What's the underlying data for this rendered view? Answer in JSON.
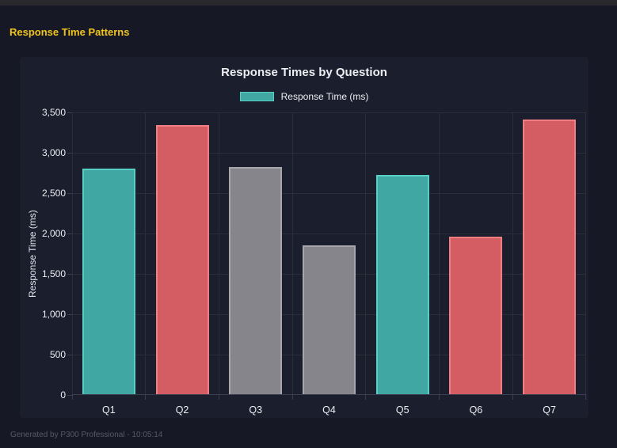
{
  "page": {
    "header_title": "Response Time Patterns",
    "footer": "Generated by P300 Professional - 10:05:14"
  },
  "colors": {
    "background": "#161925",
    "panel": "#1b1e2d",
    "top_strip": "#29282d",
    "header_yellow": "#f0c41f",
    "grid": "#2a2d3a",
    "grid_strong": "#3a3e4e",
    "text": "#eceef2",
    "text_dim": "#dfe3ea",
    "footer_text": "#565a66",
    "teal_fill": "#41a7a2",
    "teal_border": "#56cfc5",
    "red_fill": "#d35d62",
    "red_border": "#f07e82",
    "gray_fill": "#85858b",
    "gray_border": "#a6a6ac"
  },
  "chart_data": {
    "type": "bar",
    "title": "Response Times by Question",
    "legend": [
      {
        "label": "Response Time (ms)",
        "color": "teal"
      }
    ],
    "categories": [
      "Q1",
      "Q2",
      "Q3",
      "Q4",
      "Q5",
      "Q6",
      "Q7"
    ],
    "values": [
      2805,
      3340,
      2820,
      1855,
      2730,
      1965,
      3415
    ],
    "bar_colors": [
      "teal",
      "red",
      "gray",
      "gray",
      "teal",
      "red",
      "red"
    ],
    "xlabel": "",
    "ylabel": "Response Time (ms)",
    "ylim": [
      0,
      3500
    ],
    "ytick_step": 500,
    "yticks": [
      "0",
      "500",
      "1,000",
      "1,500",
      "2,000",
      "2,500",
      "3,000",
      "3,500"
    ],
    "grid": true,
    "legend_position": "top"
  }
}
